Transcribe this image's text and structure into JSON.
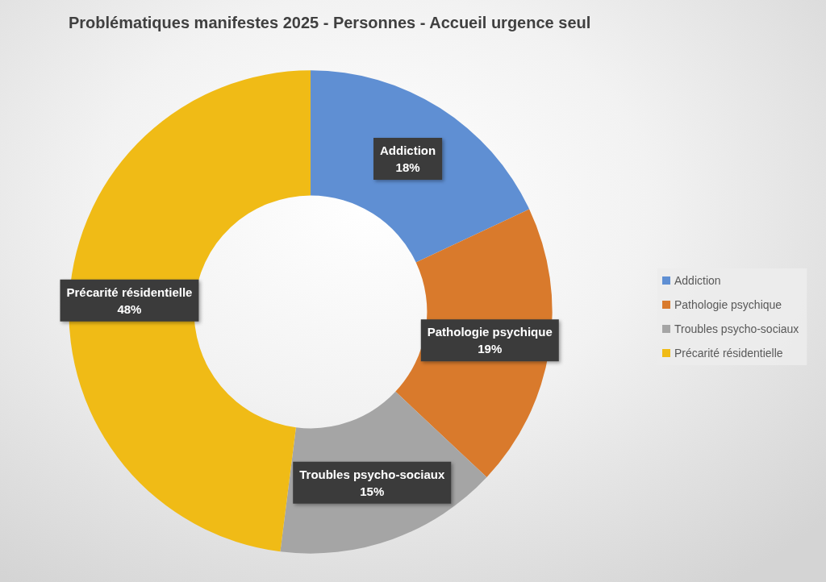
{
  "chart_data": {
    "type": "donut",
    "title": "Problématiques manifestes 2025 - Personnes - Accueil urgence seul",
    "categories": [
      "Addiction",
      "Pathologie psychique",
      "Troubles psycho-sociaux",
      "Précarité résidentielle"
    ],
    "values": [
      18,
      19,
      15,
      48
    ],
    "colors": [
      "#5f8fd3",
      "#d97a2c",
      "#a5a5a5",
      "#f0bb16"
    ],
    "value_labels": [
      "18%",
      "19%",
      "15%",
      "48%"
    ],
    "legend": "right"
  }
}
